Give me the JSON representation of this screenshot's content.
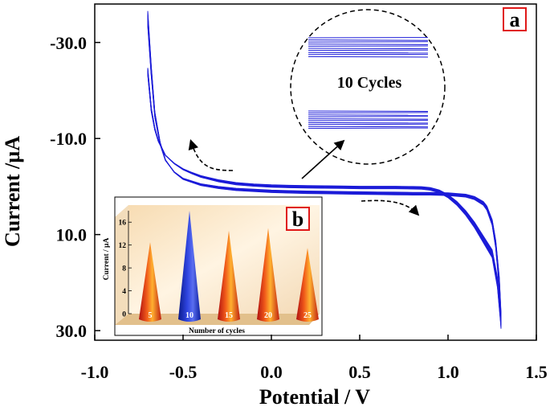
{
  "chart_data": [
    {
      "type": "line",
      "panel_label": "a",
      "title": "",
      "xlabel": "Potential / V",
      "ylabel": "Current /µA",
      "xlim": [
        -1.0,
        1.5
      ],
      "ylim": [
        -38,
        32
      ],
      "y_inverted": true,
      "x_ticks": [
        "-1.0",
        "-0.5",
        "0.0",
        "0.5",
        "1.0",
        "1.5"
      ],
      "x_tick_values": [
        -1.0,
        -0.5,
        0.0,
        0.5,
        1.0,
        1.5
      ],
      "y_ticks": [
        "-30.0",
        "-10.0",
        "10.0",
        "30.0"
      ],
      "y_tick_values": [
        -30,
        -10,
        10,
        30
      ],
      "series_color": "#1c1cd8",
      "cycles": 10,
      "scan_forward": {
        "x": [
          -0.7,
          -0.69,
          -0.68,
          -0.66,
          -0.64,
          -0.62,
          -0.6,
          -0.55,
          -0.5,
          -0.45,
          -0.4,
          -0.3,
          -0.2,
          -0.1,
          0.0,
          0.1,
          0.2,
          0.3,
          0.4,
          0.5,
          0.6,
          0.7,
          0.8,
          0.85,
          0.9,
          0.95,
          1.0,
          1.05,
          1.1,
          1.15,
          1.2,
          1.25,
          1.28,
          1.3
        ],
        "y": [
          -24,
          -20,
          -16,
          -12,
          -9.5,
          -8,
          -6.5,
          -4.8,
          -3.6,
          -2.8,
          -2.1,
          -1.2,
          -0.6,
          -0.3,
          -0.1,
          0.0,
          0.05,
          0.1,
          0.15,
          0.2,
          0.2,
          0.2,
          0.25,
          0.3,
          0.5,
          1.0,
          2.0,
          3.5,
          5.5,
          8.0,
          11.0,
          14.0,
          20.0,
          28.0
        ]
      },
      "scan_reverse": {
        "x": [
          1.3,
          1.29,
          1.27,
          1.25,
          1.22,
          1.2,
          1.15,
          1.1,
          1.0,
          0.9,
          0.8,
          0.7,
          0.6,
          0.5,
          0.4,
          0.3,
          0.2,
          0.1,
          0.0,
          -0.1,
          -0.2,
          -0.3,
          -0.4,
          -0.5,
          -0.55,
          -0.6,
          -0.63,
          -0.66,
          -0.68,
          -0.7
        ],
        "y": [
          28.0,
          20.0,
          12.0,
          7.5,
          4.5,
          3.5,
          2.4,
          1.9,
          1.6,
          1.5,
          1.5,
          1.45,
          1.4,
          1.35,
          1.3,
          1.25,
          1.2,
          1.1,
          1.0,
          0.8,
          0.6,
          0.2,
          -0.4,
          -1.6,
          -3.0,
          -5.5,
          -9.0,
          -15.0,
          -24.0,
          -35.0
        ]
      },
      "annotations": [
        {
          "text": "10 Cycles",
          "type": "zoom-inset"
        },
        {
          "text": "scan direction arrows",
          "type": "dashed-arrows"
        }
      ]
    },
    {
      "type": "bar",
      "panel_label": "b",
      "style": "3D cones",
      "xlabel": "Number of cycles",
      "ylabel": "Current / µA",
      "ylim": [
        0,
        18
      ],
      "y_ticks": [
        "0",
        "4",
        "8",
        "12",
        "16"
      ],
      "y_tick_values": [
        0,
        4,
        8,
        12,
        16
      ],
      "categories": [
        "5",
        "10",
        "15",
        "20",
        "25"
      ],
      "values": [
        12.5,
        18.0,
        14.5,
        15.0,
        11.5
      ],
      "highlight_category": "10"
    }
  ],
  "colors": {
    "curve": "#1c1cd8",
    "panel_label_border": "#e01818",
    "cone_warm": "#e8471a",
    "cone_highlight": "#1a2fc9",
    "inset_bg": "#fbe9cf"
  }
}
